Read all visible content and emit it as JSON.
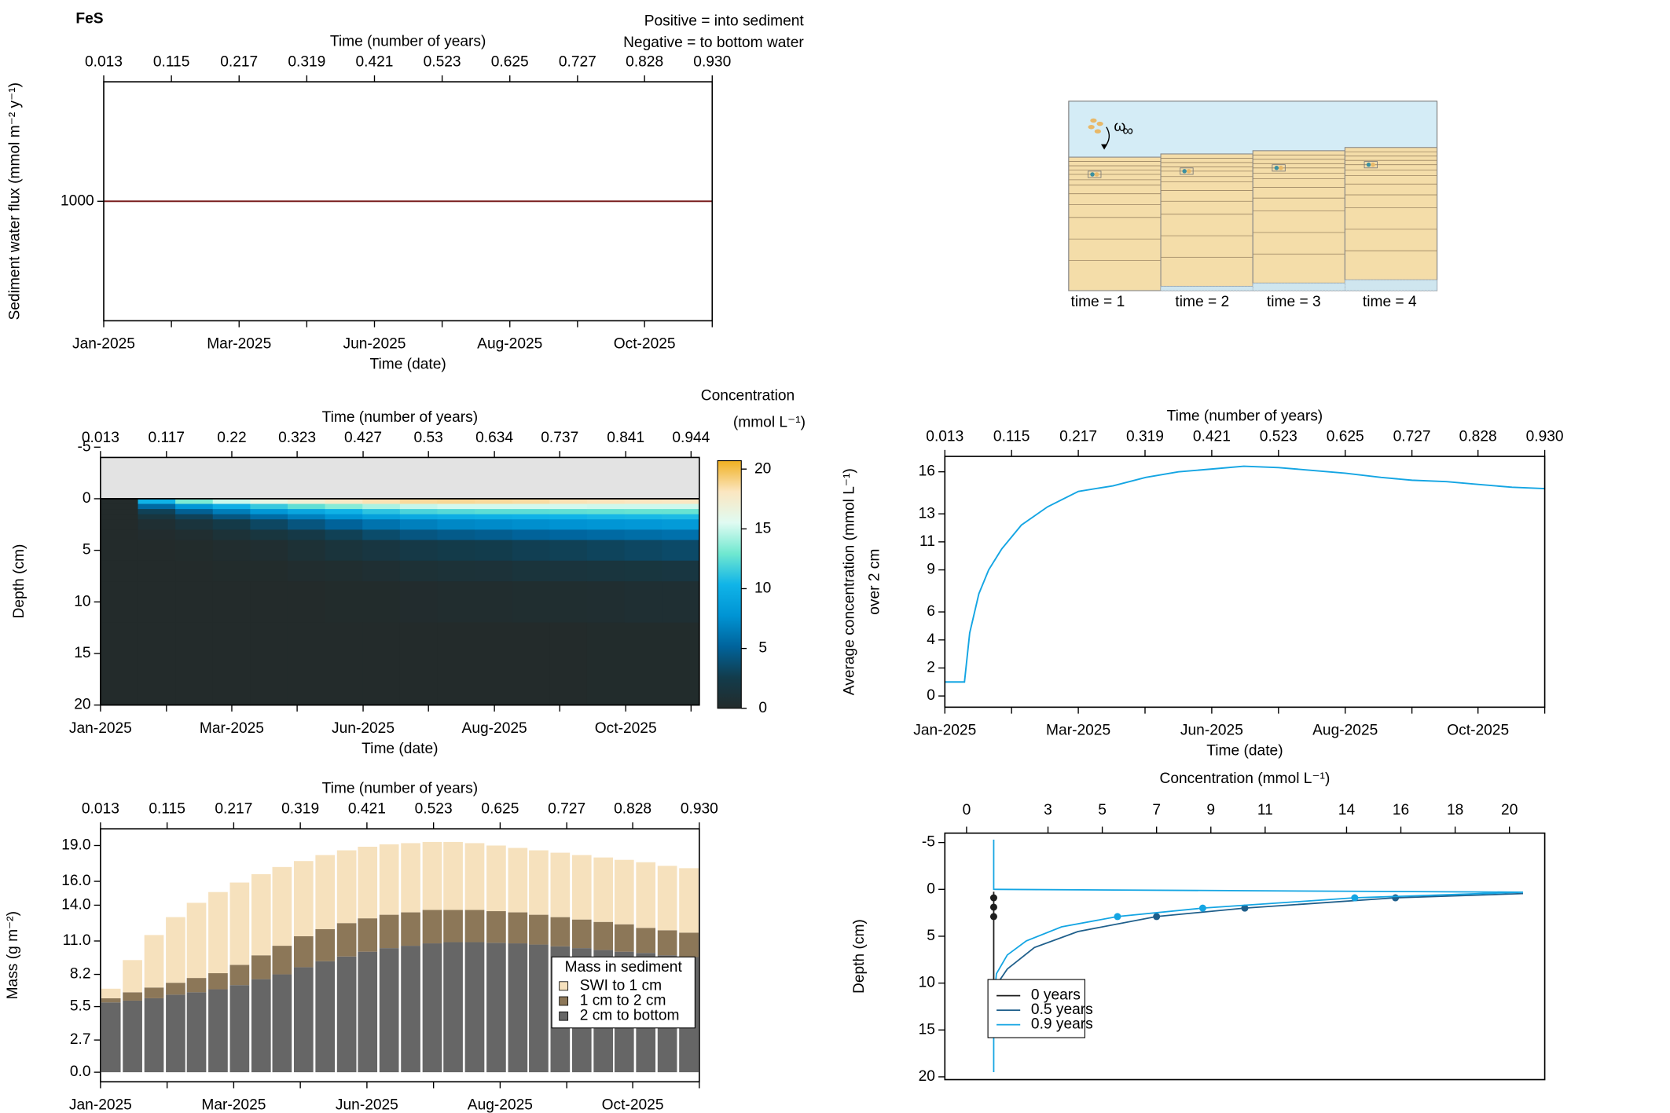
{
  "title": "FeS",
  "schematic": {
    "omega": "ω",
    "omega_subscript": "∞",
    "time_labels": [
      "time = 1",
      "time = 2",
      "time = 3",
      "time = 4"
    ]
  },
  "chart_data": [
    {
      "type": "line",
      "y_label": "Sediment water flux (mmol m⁻² y⁻¹)",
      "x_top_label": "Time (number of years)",
      "x_label": "Time (date)",
      "annotations": [
        "Positive = into sediment",
        "Negative = to bottom water"
      ],
      "annotation_colors": [
        "#8b1a1a",
        "#1a1a8b"
      ],
      "xlim": [
        0.013,
        0.93
      ],
      "xticks": [
        0.013,
        0.115,
        0.217,
        0.319,
        0.421,
        0.523,
        0.625,
        0.727,
        0.828,
        {
          "value": 0.93,
          "label": "0.930"
        }
      ],
      "date_labels": [
        "Jan-2025",
        null,
        "Mar-2025",
        null,
        "Jun-2025",
        null,
        "Aug-2025",
        null,
        "Oct-2025",
        null
      ],
      "ylim": [
        600,
        1400
      ],
      "yticks": [
        1000
      ],
      "x": [
        0.013,
        0.93
      ],
      "values": [
        1000,
        1000
      ],
      "color": "#7a1f1f"
    },
    {
      "type": "heatmap",
      "y_label": "Depth (cm)",
      "x_top_label": "Time (number of years)",
      "x_label": "Time (date)",
      "xlim": [
        0.013,
        0.957
      ],
      "xticks": [
        0.013,
        0.117,
        0.22,
        0.323,
        0.427,
        0.53,
        0.634,
        0.737,
        0.841,
        0.944
      ],
      "date_labels": [
        "Jan-2025",
        null,
        "Mar-2025",
        null,
        "Jun-2025",
        null,
        "Aug-2025",
        null,
        "Oct-2025",
        null
      ],
      "ylim": [
        20,
        -4
      ],
      "yticks": [
        -5,
        0,
        5,
        10,
        15,
        20
      ],
      "colorbar_title": "Concentration",
      "colorbar_unit": "(mmol L⁻¹)",
      "clim": [
        0,
        20.7
      ],
      "cticks": [
        0,
        5,
        10,
        15,
        20
      ],
      "colormap": [
        "#232b2b",
        "#123c4c",
        "#00649c",
        "#0094d4",
        "#10b4e8",
        "#70e8d0",
        "#e0fbf2",
        "#fbe6c0",
        "#f0b020"
      ],
      "water_color": "#e3e3e3",
      "x_edges": [
        0.013,
        0.072,
        0.131,
        0.19,
        0.249,
        0.308,
        0.367,
        0.426,
        0.485,
        0.544,
        0.603,
        0.662,
        0.721,
        0.78,
        0.839,
        0.898,
        0.957
      ],
      "depth_edges": [
        0,
        0.5,
        1,
        1.5,
        2,
        3,
        4,
        6,
        8,
        12,
        20
      ],
      "values": [
        [
          0,
          0,
          0,
          0,
          0,
          0,
          0,
          0,
          0,
          0
        ],
        [
          10.2,
          5.5,
          2.9,
          1.6,
          0.6,
          0.2,
          0.0,
          0.0,
          0.0,
          0.0
        ],
        [
          13.2,
          8.0,
          4.9,
          3.0,
          1.4,
          0.5,
          0.1,
          0.0,
          0.0,
          0.0
        ],
        [
          15.0,
          9.9,
          6.5,
          4.3,
          2.3,
          1.0,
          0.3,
          0.1,
          0.0,
          0.0
        ],
        [
          16.3,
          11.4,
          8.0,
          5.6,
          3.3,
          1.6,
          0.5,
          0.1,
          0.0,
          0.0
        ],
        [
          17.1,
          12.5,
          9.2,
          6.7,
          4.2,
          2.2,
          0.9,
          0.3,
          0.0,
          0.0
        ],
        [
          17.8,
          13.5,
          10.2,
          7.8,
          5.1,
          2.9,
          1.3,
          0.4,
          0.1,
          0.0
        ],
        [
          18.3,
          14.3,
          11.1,
          8.7,
          6.0,
          3.6,
          1.7,
          0.6,
          0.1,
          0.0
        ],
        [
          18.7,
          14.9,
          11.9,
          9.5,
          6.7,
          4.3,
          2.2,
          0.9,
          0.2,
          0.0
        ],
        [
          18.8,
          15.2,
          12.2,
          9.8,
          7.1,
          4.6,
          2.4,
          1.0,
          0.3,
          0.0
        ],
        [
          18.7,
          15.2,
          12.4,
          10.0,
          7.3,
          4.8,
          2.6,
          1.1,
          0.3,
          0.0
        ],
        [
          18.6,
          15.2,
          12.4,
          10.2,
          7.5,
          5.1,
          2.8,
          1.3,
          0.4,
          0.0
        ],
        [
          18.3,
          15.2,
          12.5,
          10.3,
          7.7,
          5.3,
          2.9,
          1.4,
          0.4,
          0.0
        ],
        [
          18.2,
          15.1,
          12.6,
          10.5,
          7.9,
          5.5,
          3.1,
          1.5,
          0.5,
          0.1
        ],
        [
          18.1,
          15.1,
          12.7,
          10.6,
          8.1,
          5.7,
          3.3,
          1.6,
          0.6,
          0.1
        ],
        [
          18.0,
          15.1,
          12.7,
          10.7,
          8.3,
          5.9,
          3.5,
          1.7,
          0.6,
          0.1
        ]
      ]
    },
    {
      "type": "line",
      "y_label": "Average concentration (mmol L⁻¹)",
      "y_sublabel": "over 2 cm",
      "x_top_label": "Time (number of years)",
      "x_label": "Time (date)",
      "xlim": [
        0.013,
        0.93
      ],
      "xticks": [
        0.013,
        0.115,
        0.217,
        0.319,
        0.421,
        0.523,
        0.625,
        0.727,
        0.828,
        {
          "value": 0.93,
          "label": "0.930"
        }
      ],
      "date_labels": [
        "Jan-2025",
        null,
        "Mar-2025",
        null,
        "Jun-2025",
        null,
        "Aug-2025",
        null,
        "Oct-2025",
        null
      ],
      "ylim": [
        -0.8,
        17.1
      ],
      "yticks": [
        0,
        2,
        4,
        6,
        9,
        11,
        13,
        16
      ],
      "x": [
        0.013,
        0.043,
        0.051,
        0.065,
        0.08,
        0.1,
        0.13,
        0.17,
        0.217,
        0.27,
        0.32,
        0.37,
        0.421,
        0.47,
        0.523,
        0.575,
        0.625,
        0.68,
        0.727,
        0.78,
        0.828,
        0.88,
        0.93
      ],
      "values": [
        1.0,
        1.0,
        4.5,
        7.3,
        9.0,
        10.5,
        12.2,
        13.5,
        14.6,
        15.0,
        15.6,
        16.0,
        16.2,
        16.4,
        16.3,
        16.1,
        15.9,
        15.6,
        15.4,
        15.3,
        15.1,
        14.9,
        14.8
      ],
      "color": "#14a5e3"
    },
    {
      "type": "stacked_bar",
      "y_label": "Mass (g m⁻²)",
      "x_top_label": "Time (number of years)",
      "x_label": "Time (date)",
      "xlim": [
        0.013,
        0.93
      ],
      "xticks": [
        0.013,
        0.115,
        0.217,
        0.319,
        0.421,
        0.523,
        0.625,
        0.727,
        0.828,
        {
          "value": 0.93,
          "label": "0.930"
        }
      ],
      "date_labels": [
        "Jan-2025",
        null,
        "Mar-2025",
        null,
        "Jun-2025",
        null,
        "Aug-2025",
        null,
        "Oct-2025",
        null
      ],
      "ylim": [
        -0.8,
        20.4
      ],
      "yticks": [
        {
          "value": 0,
          "label": "0.0"
        },
        2.7,
        5.5,
        8.2,
        {
          "value": 11,
          "label": "11.0"
        },
        {
          "value": 14,
          "label": "14.0"
        },
        {
          "value": 16,
          "label": "16.0"
        },
        {
          "value": 19,
          "label": "19.0"
        }
      ],
      "legend_title": "Mass in sediment",
      "x": [
        0.029,
        0.062,
        0.095,
        0.128,
        0.16,
        0.193,
        0.226,
        0.259,
        0.291,
        0.324,
        0.357,
        0.39,
        0.422,
        0.455,
        0.488,
        0.521,
        0.553,
        0.586,
        0.619,
        0.652,
        0.684,
        0.717,
        0.75,
        0.783,
        0.815,
        0.848,
        0.881,
        0.914
      ],
      "series": [
        {
          "name": "SWI to 1 cm",
          "color": "#f6e1bd",
          "values": [
            0.8,
            2.7,
            4.4,
            5.5,
            6.3,
            6.8,
            6.9,
            6.8,
            6.6,
            6.3,
            6.2,
            6.1,
            6.0,
            5.9,
            5.8,
            5.7,
            5.7,
            5.6,
            5.5,
            5.4,
            5.4,
            5.4,
            5.4,
            5.4,
            5.4,
            5.5,
            5.4,
            5.4
          ]
        },
        {
          "name": "1 cm to 2 cm",
          "color": "#8c7758",
          "values": [
            0.35,
            0.7,
            0.9,
            1.0,
            1.2,
            1.35,
            1.7,
            2.0,
            2.4,
            2.6,
            2.7,
            2.8,
            2.8,
            2.8,
            2.8,
            2.8,
            2.7,
            2.7,
            2.65,
            2.6,
            2.5,
            2.45,
            2.4,
            2.35,
            2.3,
            2.1,
            2.1,
            2.05
          ]
        },
        {
          "name": "2 cm to bottom",
          "color": "#666666",
          "values": [
            5.85,
            6.0,
            6.2,
            6.5,
            6.7,
            6.95,
            7.3,
            7.8,
            8.2,
            8.8,
            9.3,
            9.7,
            10.1,
            10.4,
            10.6,
            10.8,
            10.9,
            10.9,
            10.85,
            10.8,
            10.7,
            10.55,
            10.4,
            10.25,
            10.1,
            10.0,
            9.8,
            9.65
          ]
        }
      ]
    },
    {
      "type": "profile",
      "y_label": "Depth (cm)",
      "x_top_label": "Concentration (mmol L⁻¹)",
      "xlim": [
        -0.8,
        21.3
      ],
      "xticks": [
        0,
        3,
        5,
        7,
        9,
        11,
        14,
        16,
        18,
        20
      ],
      "ylim": [
        20.3,
        -6
      ],
      "yticks": [
        -5,
        0,
        5,
        10,
        15,
        20
      ],
      "legend": "bottomleft",
      "series": [
        {
          "name": "0 years",
          "color": "#1e1e1e",
          "x": [
            1.0,
            1.0
          ],
          "values": [
            0.25,
            10.5
          ],
          "point_x": [
            1.0,
            1.0,
            1.0
          ],
          "point_values": [
            0.9,
            1.9,
            2.9
          ]
        },
        {
          "name": "0.5 years",
          "color": "#1f5f8b",
          "x": [
            20.5,
            15.8,
            10.25,
            7.0,
            4.1,
            2.5,
            1.5,
            1.1
          ],
          "values": [
            0.45,
            0.9,
            2.0,
            2.9,
            4.5,
            6.2,
            8.5,
            10.2
          ],
          "point_x": [
            15.8,
            10.25,
            7.0
          ],
          "point_values": [
            0.9,
            2.0,
            2.9
          ]
        },
        {
          "name": "0.9 years",
          "color": "#14a5e3",
          "x": [
            1.0,
            1.0,
            20.5,
            14.3,
            8.7,
            5.56,
            3.5,
            2.2,
            1.5,
            1.1,
            1.0,
            1.0
          ],
          "values": [
            -5.3,
            0,
            0.3,
            0.9,
            2.0,
            2.9,
            4.0,
            5.5,
            7.0,
            9.0,
            12,
            19.5
          ],
          "point_x": [
            14.3,
            8.7,
            5.56
          ],
          "point_values": [
            0.9,
            2.0,
            2.9
          ]
        }
      ]
    }
  ]
}
